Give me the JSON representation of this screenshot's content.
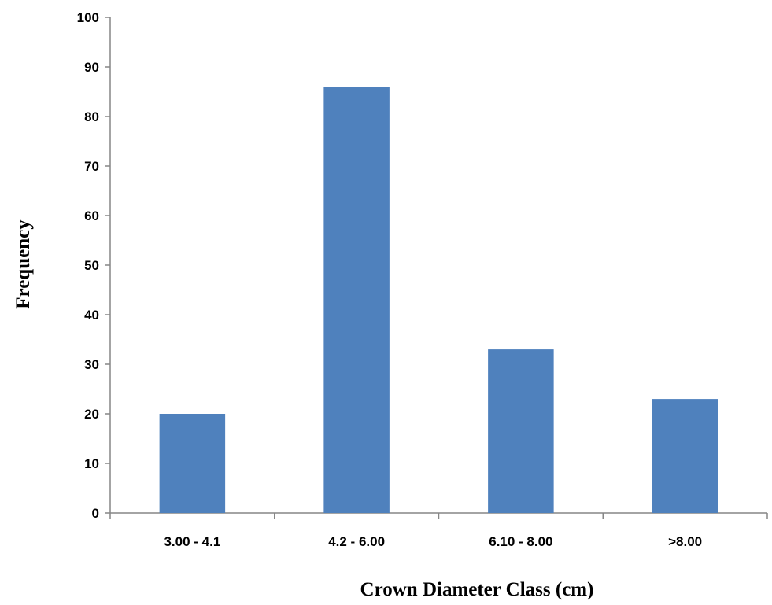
{
  "chart_data": {
    "type": "bar",
    "title": "",
    "xlabel": "Crown Diameter Class (cm)",
    "ylabel": "Frequency",
    "categories": [
      "3.00 - 4.1",
      "4.2 - 6.00",
      "6.10 - 8.00",
      ">8.00"
    ],
    "values": [
      20,
      86,
      33,
      23
    ],
    "ylim": [
      0,
      100
    ],
    "yticks": [
      "0",
      "10",
      "20",
      "30",
      "40",
      "50",
      "60",
      "70",
      "80",
      "90",
      "100"
    ],
    "grid": false,
    "legend": "none",
    "colors": {
      "bar": "#4f81bd",
      "axis": "#868686",
      "text": "#000000"
    }
  }
}
